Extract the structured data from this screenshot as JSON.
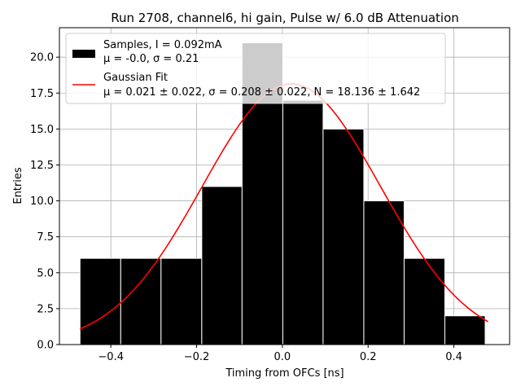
{
  "chart_data": {
    "type": "bar",
    "title": "Run 2708, channel6, hi gain, Pulse w/ 6.0 dB Attenuation",
    "xlabel": "Timing from OFCs [ns]",
    "ylabel": "Entries",
    "xlim": [
      -0.52,
      0.53
    ],
    "ylim": [
      0,
      22.05
    ],
    "xticks": [
      -0.4,
      -0.2,
      0.0,
      0.2,
      0.4
    ],
    "xtick_labels": [
      "−0.4",
      "−0.2",
      "0.0",
      "0.2",
      "0.4"
    ],
    "yticks": [
      0.0,
      2.5,
      5.0,
      7.5,
      10.0,
      12.5,
      15.0,
      17.5,
      20.0
    ],
    "ytick_labels": [
      "0.0",
      "2.5",
      "5.0",
      "7.5",
      "10.0",
      "12.5",
      "15.0",
      "17.5",
      "20.0"
    ],
    "grid": true,
    "legend_position": "top-left",
    "histogram": {
      "name": "Samples, I = 0.092mA",
      "stats_line": "μ = -0.0, σ = 0.21",
      "color": "#000000",
      "edge_color": "#ffffff",
      "bin_edges": [
        -0.472,
        -0.377,
        -0.283,
        -0.188,
        -0.094,
        0.001,
        0.095,
        0.19,
        0.284,
        0.379,
        0.473
      ],
      "counts": [
        6,
        6,
        6,
        11,
        21,
        17,
        15,
        10,
        6,
        2
      ]
    },
    "fit": {
      "name": "Gaussian Fit",
      "stats_line": "μ = 0.021 ± 0.022, σ = 0.208 ± 0.022, N = 18.136 ± 1.642",
      "color": "#ff0000",
      "mu": 0.021,
      "sigma": 0.208,
      "N": 18.136,
      "x_range": [
        -0.472,
        0.48
      ]
    }
  }
}
